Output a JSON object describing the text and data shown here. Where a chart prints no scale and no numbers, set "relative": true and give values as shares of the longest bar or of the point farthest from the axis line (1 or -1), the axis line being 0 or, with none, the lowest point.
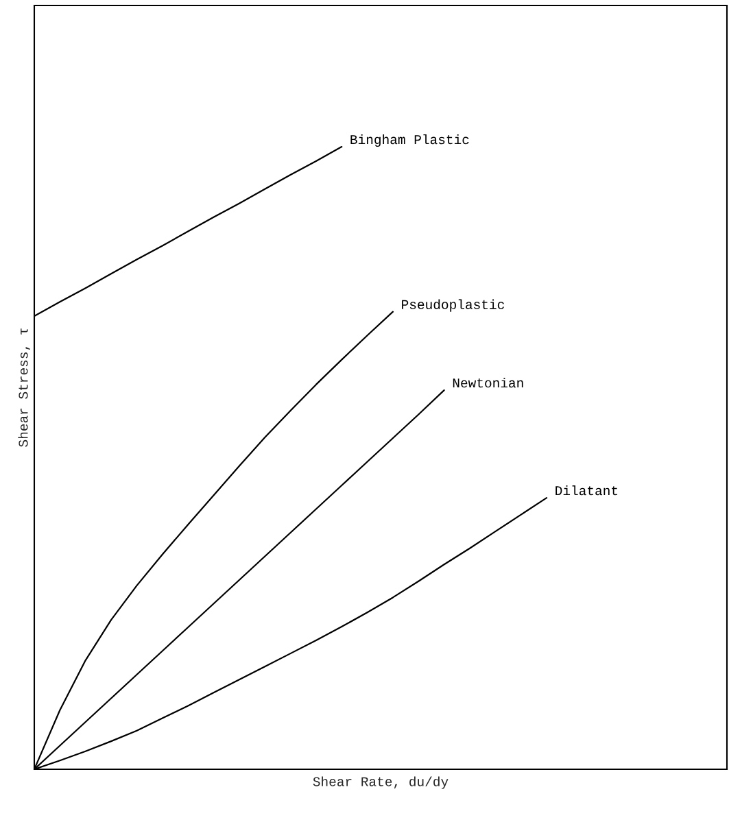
{
  "chart_data": {
    "type": "line",
    "relative": true,
    "xlabel": "Shear Rate, du/dy",
    "ylabel": "Shear Stress, τ",
    "marker": "none",
    "line_style": "solid",
    "categories": [
      null,
      null,
      null,
      null,
      null,
      null,
      null,
      null,
      null,
      null,
      null,
      null,
      null,
      null,
      null,
      null,
      null,
      null,
      null,
      null,
      null
    ],
    "series": [
      {
        "name": "Bingham Plastic",
        "color": "#000000",
        "values": [
          0.728,
          0.751,
          0.773,
          0.796,
          0.819,
          0.841,
          0.864,
          0.887,
          0.909,
          0.932,
          0.955,
          0.977,
          1,
          null,
          null,
          null,
          null,
          null,
          null,
          null,
          null
        ]
      },
      {
        "name": "Pseudoplastic",
        "color": "#000000",
        "values": [
          0,
          0.095,
          0.175,
          0.24,
          0.295,
          0.345,
          0.393,
          0.44,
          0.487,
          0.533,
          0.576,
          0.618,
          0.658,
          0.697,
          0.735,
          null,
          null,
          null,
          null,
          null,
          null
        ]
      },
      {
        "name": "Newtonian",
        "color": "#000000",
        "values": [
          0,
          0.038,
          0.076,
          0.114,
          0.152,
          0.19,
          0.228,
          0.266,
          0.304,
          0.342,
          0.38,
          0.418,
          0.456,
          0.494,
          0.532,
          0.57,
          0.609,
          null,
          null,
          null,
          null
        ]
      },
      {
        "name": "Dilatant",
        "color": "#000000",
        "values": [
          0,
          0.014,
          0.029,
          0.045,
          0.062,
          0.082,
          0.102,
          0.123,
          0.144,
          0.165,
          0.186,
          0.207,
          0.229,
          0.252,
          0.276,
          0.302,
          0.329,
          0.355,
          0.382,
          0.409,
          0.436
        ]
      }
    ]
  }
}
